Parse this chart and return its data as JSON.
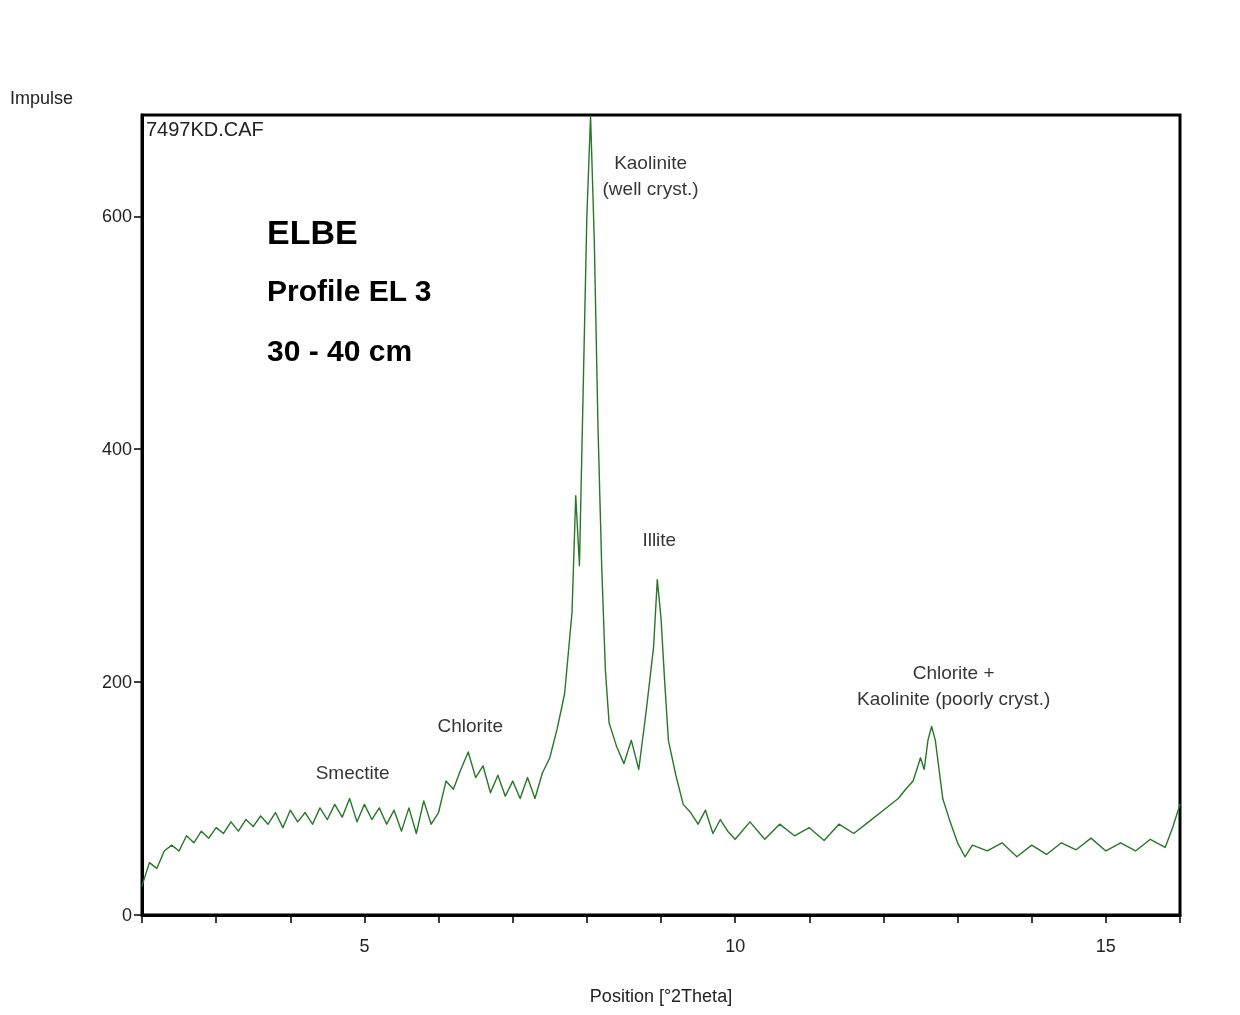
{
  "chart_data": {
    "type": "line",
    "xlabel": "Position [°2Theta]",
    "ylabel": "Impulse",
    "xlim": [
      2,
      16
    ],
    "ylim": [
      0,
      687
    ],
    "xticks": [
      {
        "value": 2,
        "label": null
      },
      {
        "value": 3,
        "label": null
      },
      {
        "value": 4,
        "label": null
      },
      {
        "value": 5,
        "label": "5"
      },
      {
        "value": 6,
        "label": null
      },
      {
        "value": 7,
        "label": null
      },
      {
        "value": 8,
        "label": null
      },
      {
        "value": 9,
        "label": null
      },
      {
        "value": 10,
        "label": "10"
      },
      {
        "value": 11,
        "label": null
      },
      {
        "value": 12,
        "label": null
      },
      {
        "value": 13,
        "label": null
      },
      {
        "value": 14,
        "label": null
      },
      {
        "value": 15,
        "label": "15"
      },
      {
        "value": 16,
        "label": null
      }
    ],
    "yticks": [
      0,
      200,
      400,
      600
    ],
    "grid": false,
    "marker": "none",
    "line_style": "solid",
    "series": [
      {
        "color": "#267826",
        "x": [
          2.0,
          2.1,
          2.2,
          2.3,
          2.4,
          2.5,
          2.6,
          2.7,
          2.8,
          2.9,
          3.0,
          3.1,
          3.2,
          3.3,
          3.4,
          3.5,
          3.6,
          3.7,
          3.8,
          3.9,
          4.0,
          4.1,
          4.2,
          4.3,
          4.4,
          4.5,
          4.6,
          4.7,
          4.8,
          4.9,
          5.0,
          5.1,
          5.2,
          5.3,
          5.4,
          5.5,
          5.6,
          5.7,
          5.8,
          5.9,
          6.0,
          6.1,
          6.2,
          6.3,
          6.4,
          6.5,
          6.6,
          6.7,
          6.8,
          6.9,
          7.0,
          7.1,
          7.2,
          7.3,
          7.4,
          7.5,
          7.6,
          7.7,
          7.8,
          7.85,
          7.9,
          7.95,
          8.0,
          8.05,
          8.1,
          8.15,
          8.2,
          8.25,
          8.3,
          8.4,
          8.5,
          8.6,
          8.7,
          8.8,
          8.9,
          8.95,
          9.0,
          9.05,
          9.1,
          9.2,
          9.3,
          9.4,
          9.5,
          9.6,
          9.7,
          9.8,
          9.9,
          10.0,
          10.2,
          10.4,
          10.6,
          10.8,
          11.0,
          11.2,
          11.4,
          11.6,
          11.8,
          12.0,
          12.2,
          12.3,
          12.4,
          12.5,
          12.55,
          12.6,
          12.65,
          12.7,
          12.8,
          12.9,
          13.0,
          13.1,
          13.2,
          13.4,
          13.6,
          13.8,
          14.0,
          14.2,
          14.4,
          14.6,
          14.8,
          15.0,
          15.2,
          15.4,
          15.6,
          15.8,
          15.9,
          16.0
        ],
        "values": [
          25,
          45,
          40,
          55,
          60,
          55,
          68,
          62,
          72,
          66,
          75,
          70,
          80,
          72,
          82,
          76,
          85,
          78,
          88,
          75,
          90,
          80,
          88,
          78,
          92,
          82,
          95,
          84,
          100,
          80,
          95,
          82,
          92,
          78,
          90,
          72,
          92,
          70,
          98,
          78,
          88,
          115,
          108,
          125,
          140,
          118,
          128,
          105,
          120,
          102,
          115,
          100,
          118,
          100,
          122,
          135,
          160,
          190,
          260,
          360,
          300,
          450,
          600,
          686,
          580,
          420,
          300,
          210,
          165,
          145,
          130,
          150,
          125,
          175,
          230,
          288,
          255,
          200,
          150,
          120,
          95,
          88,
          78,
          90,
          70,
          82,
          72,
          65,
          80,
          65,
          78,
          68,
          75,
          64,
          78,
          70,
          80,
          90,
          100,
          108,
          115,
          135,
          125,
          150,
          162,
          150,
          100,
          80,
          62,
          50,
          60,
          55,
          62,
          50,
          60,
          52,
          62,
          56,
          66,
          55,
          62,
          55,
          65,
          58,
          75,
          95
        ]
      }
    ],
    "annotations": [
      "7497KD.CAF",
      "ELBE",
      "Profile EL 3",
      "30 - 40 cm",
      {
        "text": "Kaolinite\n(well cryst.)",
        "x": 8.05,
        "y": 686
      },
      {
        "text": "Illite",
        "x": 8.95,
        "y": 288
      },
      {
        "text": "Chlorite",
        "x": 6.4,
        "y": 140
      },
      {
        "text": "Smectite",
        "x": 4.8,
        "y": 100
      },
      {
        "text": "Chlorite +\nKaolinite (poorly cryst.)",
        "x": 12.65,
        "y": 162
      }
    ]
  }
}
